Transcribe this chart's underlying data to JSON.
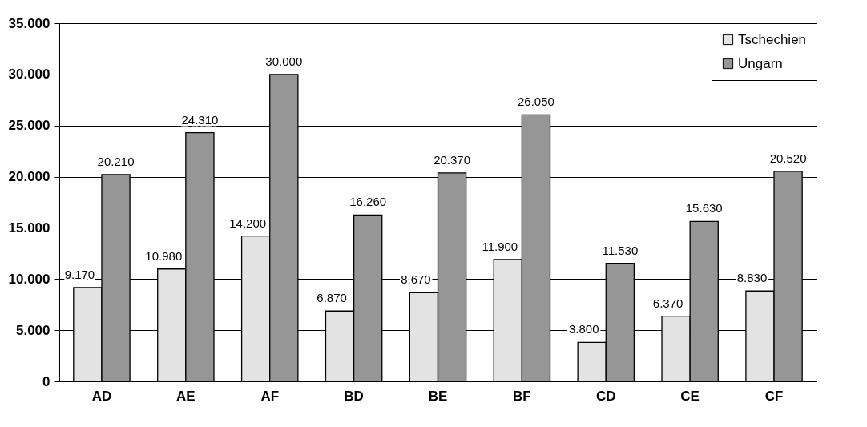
{
  "chart_data": {
    "type": "bar",
    "categories": [
      "AD",
      "AE",
      "AF",
      "BD",
      "BE",
      "BF",
      "CD",
      "CE",
      "CF"
    ],
    "series": [
      {
        "name": "Tschechien",
        "color": "#e3e3e3",
        "values": [
          9170,
          10980,
          14200,
          6870,
          8670,
          11900,
          3800,
          6370,
          8830
        ],
        "value_labels": [
          "9.170",
          "10.980",
          "14.200",
          "6.870",
          "8.670",
          "11.900",
          "3.800",
          "6.370",
          "8.830"
        ]
      },
      {
        "name": "Ungarn",
        "color": "#969696",
        "values": [
          20210,
          24310,
          30000,
          16260,
          20370,
          26050,
          11530,
          15630,
          20520
        ],
        "value_labels": [
          "20.210",
          "24.310",
          "30.000",
          "16.260",
          "20.370",
          "26.050",
          "11.530",
          "15.630",
          "20.520"
        ]
      }
    ],
    "ylim": [
      0,
      35000
    ],
    "yticks": [
      {
        "value": 0,
        "label": "0"
      },
      {
        "value": 5000,
        "label": "5.000"
      },
      {
        "value": 10000,
        "label": "10.000"
      },
      {
        "value": 15000,
        "label": "15.000"
      },
      {
        "value": 20000,
        "label": "20.000"
      },
      {
        "value": 25000,
        "label": "25.000"
      },
      {
        "value": 30000,
        "label": "30.000"
      },
      {
        "value": 35000,
        "label": "35.000"
      }
    ],
    "grid": "y",
    "legend": "top right"
  }
}
